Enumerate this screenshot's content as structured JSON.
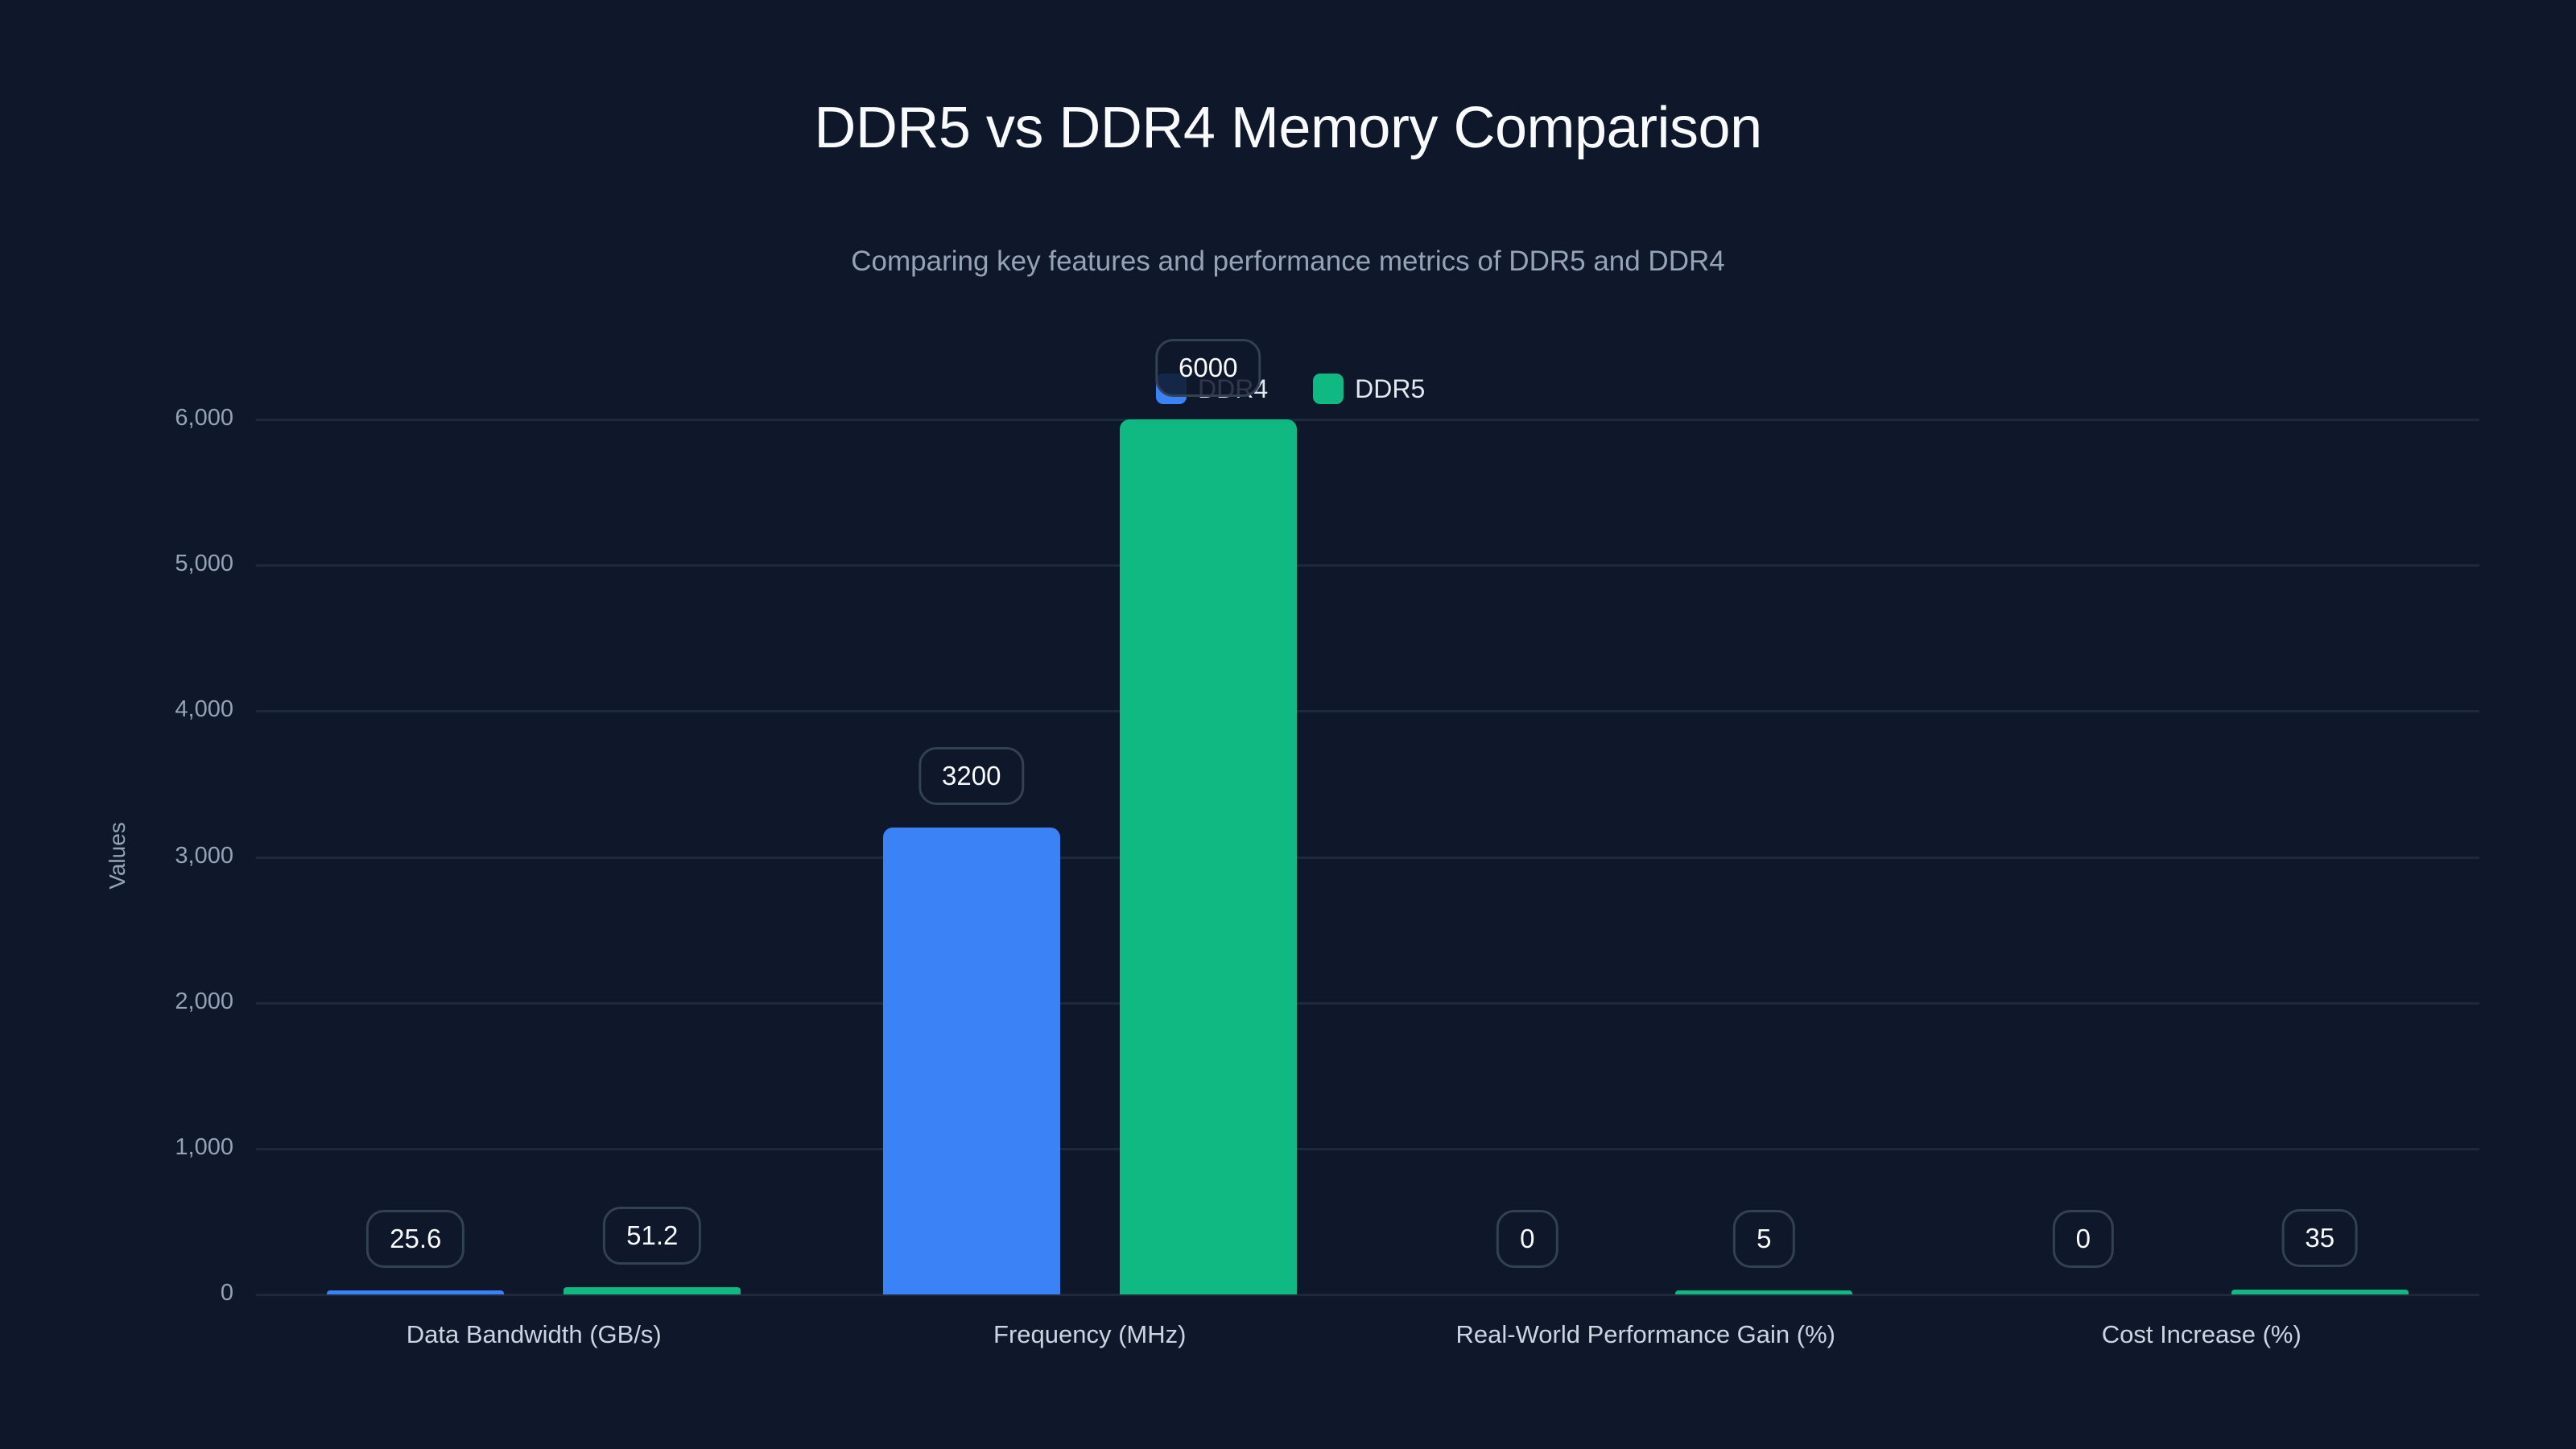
{
  "title": "DDR5 vs DDR4 Memory Comparison",
  "subtitle": "Comparing key features and performance metrics of DDR5 and DDR4",
  "legend": [
    {
      "label": "DDR4",
      "color": "#3b82f6"
    },
    {
      "label": "DDR5",
      "color": "#10b981"
    }
  ],
  "y_axis": {
    "label": "Values",
    "ticks": [
      "0",
      "1,000",
      "2,000",
      "3,000",
      "4,000",
      "5,000",
      "6,000"
    ]
  },
  "chart_data": {
    "type": "bar",
    "title": "DDR5 vs DDR4 Memory Comparison",
    "subtitle": "Comparing key features and performance metrics of DDR5 and DDR4",
    "categories": [
      "Data Bandwidth (GB/s)",
      "Frequency (MHz)",
      "Real-World Performance Gain (%)",
      "Cost Increase (%)"
    ],
    "series": [
      {
        "name": "DDR4",
        "color": "#3b82f6",
        "values": [
          25.6,
          3200,
          0,
          0
        ],
        "labels": [
          "25.6",
          "3200",
          "0",
          "0"
        ]
      },
      {
        "name": "DDR5",
        "color": "#10b981",
        "values": [
          51.2,
          6000,
          5,
          35
        ],
        "labels": [
          "51.2",
          "6000",
          "5",
          "35"
        ]
      }
    ],
    "xlabel": "",
    "ylabel": "Values",
    "ylim": [
      0,
      6000
    ],
    "yticks": [
      0,
      1000,
      2000,
      3000,
      4000,
      5000,
      6000
    ],
    "grid": true,
    "legend_position": "top"
  }
}
